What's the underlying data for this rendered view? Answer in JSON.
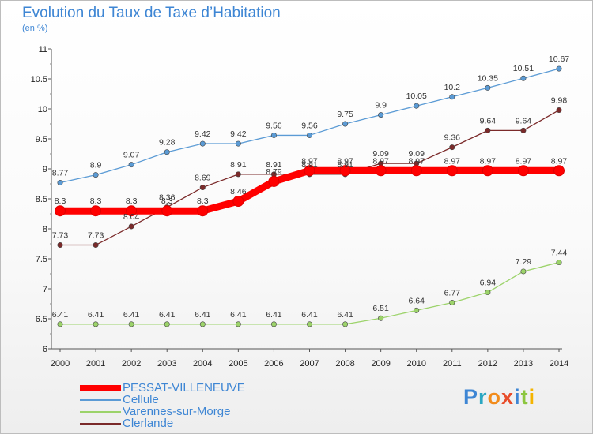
{
  "title": "Evolution du Taux de Taxe d’Habitation",
  "unit": "(en %)",
  "logo": "Proxiti",
  "chart_data": {
    "type": "line",
    "title": "Evolution du Taux de Taxe d’Habitation",
    "ylabel": "(en %)",
    "x": [
      2000,
      2001,
      2002,
      2003,
      2004,
      2005,
      2006,
      2007,
      2008,
      2009,
      2010,
      2011,
      2012,
      2013,
      2014
    ],
    "ylim": [
      6,
      11
    ],
    "yticks": [
      "6",
      "6.5",
      "7",
      "7.5",
      "8",
      "8.5",
      "9",
      "9.5",
      "10",
      "10.5",
      "11"
    ],
    "grid": false,
    "legend": "bottom-left",
    "series": [
      {
        "name": "PESSAT-VILLENEUVE",
        "color": "#ff0000",
        "values": [
          8.3,
          8.3,
          8.3,
          8.3,
          8.3,
          8.46,
          8.79,
          8.97,
          8.97,
          8.97,
          8.97,
          8.97,
          8.97,
          8.97,
          8.97
        ],
        "labels": [
          "8.3",
          "8.3",
          "8.3",
          "8.3",
          "8.3",
          "8.46",
          "8.79",
          "8.97",
          "8.97",
          "8.97",
          "8.97",
          "8.97",
          "8.97",
          "8.97",
          "8.97"
        ]
      },
      {
        "name": "Cellule",
        "color": "#5b9bd5",
        "values": [
          8.77,
          8.9,
          9.07,
          9.28,
          9.42,
          9.42,
          9.56,
          9.56,
          9.75,
          9.9,
          10.05,
          10.2,
          10.35,
          10.51,
          10.67
        ],
        "labels": [
          "8.77",
          "8.9",
          "9.07",
          "9.28",
          "9.42",
          "9.42",
          "9.56",
          "9.56",
          "9.75",
          "9.9",
          "10.05",
          "10.2",
          "10.35",
          "10.51",
          "10.67"
        ]
      },
      {
        "name": "Varennes-sur-Morge",
        "color": "#9cd36a",
        "values": [
          6.41,
          6.41,
          6.41,
          6.41,
          6.41,
          6.41,
          6.41,
          6.41,
          6.41,
          6.51,
          6.64,
          6.77,
          6.94,
          7.29,
          7.44
        ],
        "labels": [
          "6.41",
          "6.41",
          "6.41",
          "6.41",
          "6.41",
          "6.41",
          "6.41",
          "6.41",
          "6.41",
          "6.51",
          "6.64",
          "6.77",
          "6.94",
          "7.29",
          "7.44"
        ]
      },
      {
        "name": "Clerlande",
        "color": "#7b2a2a",
        "values": [
          7.73,
          7.73,
          8.04,
          8.36,
          8.69,
          8.91,
          8.91,
          8.91,
          8.91,
          9.09,
          9.09,
          9.36,
          9.64,
          9.64,
          9.98
        ],
        "labels": [
          "7.73",
          "7.73",
          "8.04",
          "8.36",
          "8.69",
          "8.91",
          "8.91",
          "8.91",
          "8.91",
          "9.09",
          "9.09",
          "9.36",
          "9.64",
          "9.64",
          "9.98"
        ]
      }
    ]
  }
}
